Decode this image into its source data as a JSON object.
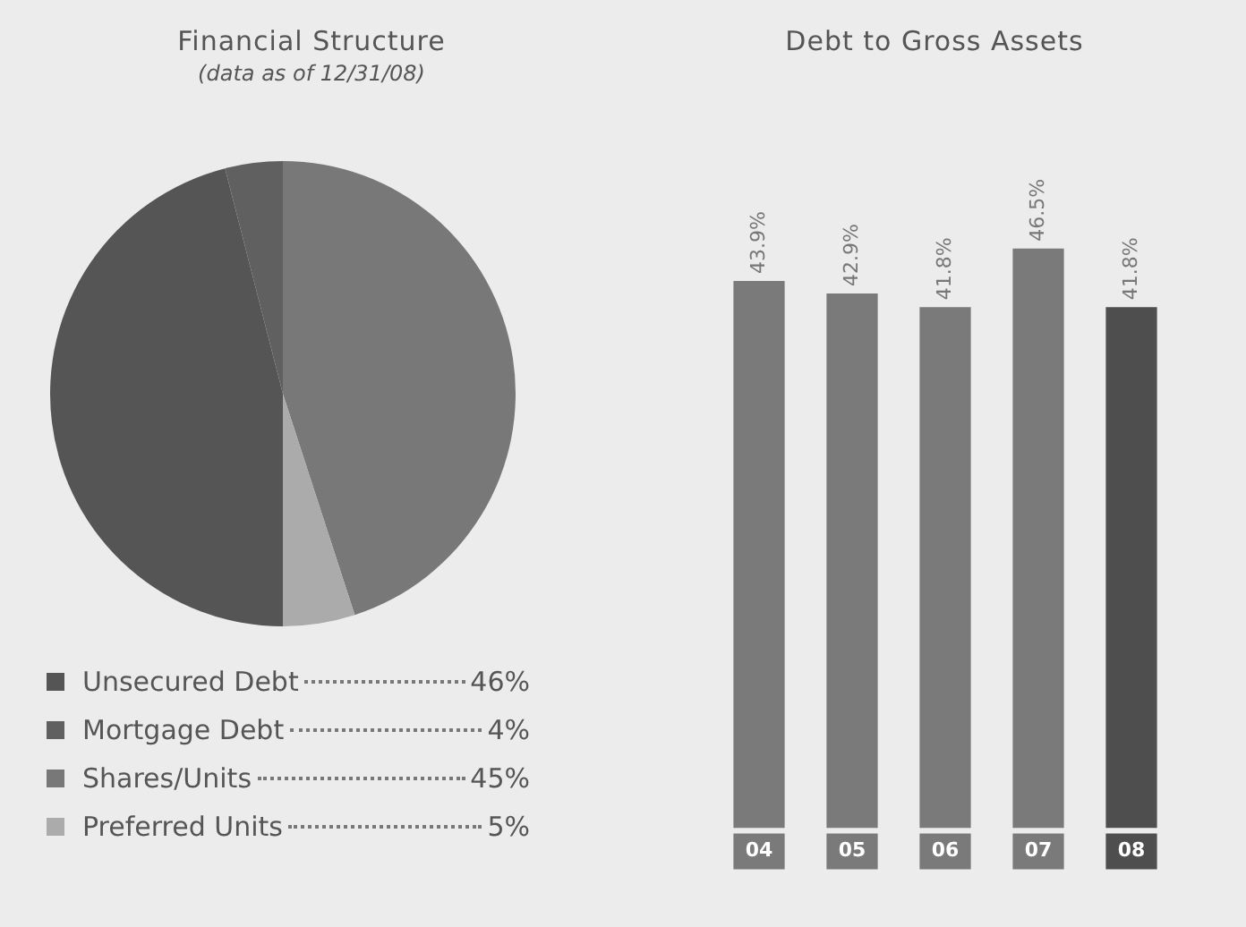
{
  "chart_data": [
    {
      "type": "pie",
      "title": "Financial Structure",
      "subtitle": "(data as of 12/31/08)",
      "categories": [
        "Unsecured Debt",
        "Mortgage Debt",
        "Shares/Units",
        "Preferred Units"
      ],
      "values": [
        46,
        4,
        45,
        5
      ],
      "value_labels": [
        "46%",
        "4%",
        "45%",
        "5%"
      ],
      "colors": [
        "#555555",
        "#606060",
        "#787878",
        "#ababab"
      ],
      "legend": "bottom"
    },
    {
      "type": "bar",
      "title": "Debt to Gross Assets",
      "categories": [
        "04",
        "05",
        "06",
        "07",
        "08"
      ],
      "values": [
        43.9,
        42.9,
        41.8,
        46.5,
        41.8
      ],
      "value_labels": [
        "43.9%",
        "42.9%",
        "41.8%",
        "46.5%",
        "41.8%"
      ],
      "colors": [
        "#7a7a7a",
        "#7a7a7a",
        "#7a7a7a",
        "#7a7a7a",
        "#4e4e4e"
      ]
    }
  ]
}
